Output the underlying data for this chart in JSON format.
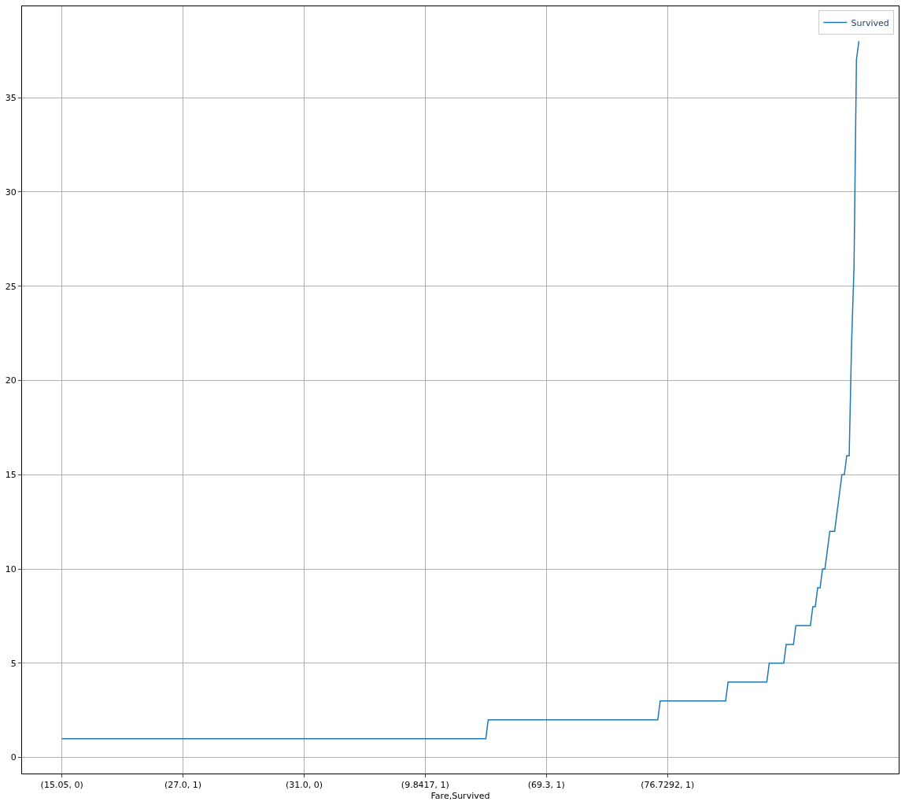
{
  "chart_data": {
    "type": "line",
    "xlabel": "Fare,Survived",
    "categories": [
      "(15.05, 0)",
      null,
      null,
      null,
      null,
      null,
      null,
      null,
      null,
      null,
      null,
      null,
      null,
      null,
      null,
      null,
      null,
      null,
      null,
      null,
      null,
      null,
      null,
      null,
      null,
      null,
      null,
      null,
      null,
      null,
      null,
      null,
      null,
      null,
      null,
      null,
      null,
      null,
      null,
      null,
      null,
      null,
      null,
      null,
      null,
      null,
      null,
      null,
      null,
      null,
      "(27.0, 1)",
      null,
      null,
      null,
      null,
      null,
      null,
      null,
      null,
      null,
      null,
      null,
      null,
      null,
      null,
      null,
      null,
      null,
      null,
      null,
      null,
      null,
      null,
      null,
      null,
      null,
      null,
      null,
      null,
      null,
      null,
      null,
      null,
      null,
      null,
      null,
      null,
      null,
      null,
      null,
      null,
      null,
      null,
      null,
      null,
      null,
      null,
      null,
      null,
      null,
      "(31.0, 0)",
      null,
      null,
      null,
      null,
      null,
      null,
      null,
      null,
      null,
      null,
      null,
      null,
      null,
      null,
      null,
      null,
      null,
      null,
      null,
      null,
      null,
      null,
      null,
      null,
      null,
      null,
      null,
      null,
      null,
      null,
      null,
      null,
      null,
      null,
      null,
      null,
      null,
      null,
      null,
      null,
      null,
      null,
      null,
      null,
      null,
      null,
      null,
      null,
      null,
      "(9.8417, 1)",
      null,
      null,
      null,
      null,
      null,
      null,
      null,
      null,
      null,
      null,
      null,
      null,
      null,
      null,
      null,
      null,
      null,
      null,
      null,
      null,
      null,
      null,
      null,
      null,
      null,
      null,
      null,
      null,
      null,
      null,
      null,
      null,
      null,
      null,
      null,
      null,
      null,
      null,
      null,
      null,
      null,
      null,
      null,
      null,
      null,
      null,
      null,
      null,
      null,
      "(69.3, 1)",
      null,
      null,
      null,
      null,
      null,
      null,
      null,
      null,
      null,
      null,
      null,
      null,
      null,
      null,
      null,
      null,
      null,
      null,
      null,
      null,
      null,
      null,
      null,
      null,
      null,
      null,
      null,
      null,
      null,
      null,
      null,
      null,
      null,
      null,
      null,
      null,
      null,
      null,
      null,
      null,
      null,
      null,
      null,
      null,
      null,
      null,
      null,
      null,
      null,
      "(76.7292, 1)",
      null,
      null,
      null,
      null,
      null,
      null,
      null,
      null,
      null,
      null,
      null,
      null,
      null,
      null,
      null,
      null,
      null,
      null,
      null,
      null,
      null,
      null,
      null,
      null,
      null,
      null,
      null,
      null,
      null,
      null,
      null,
      null,
      null,
      null,
      null,
      null,
      null,
      null,
      null,
      null,
      null,
      null,
      null,
      null,
      null,
      null,
      null,
      null,
      null,
      null,
      null,
      null,
      null,
      null,
      null,
      null,
      null,
      null,
      null,
      null,
      null,
      null,
      null,
      null,
      null,
      null,
      null,
      null,
      null,
      null,
      null,
      null,
      null,
      null,
      null,
      null,
      null,
      null,
      null
    ],
    "series": [
      {
        "name": "Survived",
        "color": "#1f77b4",
        "values": [
          1,
          1,
          1,
          1,
          1,
          1,
          1,
          1,
          1,
          1,
          1,
          1,
          1,
          1,
          1,
          1,
          1,
          1,
          1,
          1,
          1,
          1,
          1,
          1,
          1,
          1,
          1,
          1,
          1,
          1,
          1,
          1,
          1,
          1,
          1,
          1,
          1,
          1,
          1,
          1,
          1,
          1,
          1,
          1,
          1,
          1,
          1,
          1,
          1,
          1,
          1,
          1,
          1,
          1,
          1,
          1,
          1,
          1,
          1,
          1,
          1,
          1,
          1,
          1,
          1,
          1,
          1,
          1,
          1,
          1,
          1,
          1,
          1,
          1,
          1,
          1,
          1,
          1,
          1,
          1,
          1,
          1,
          1,
          1,
          1,
          1,
          1,
          1,
          1,
          1,
          1,
          1,
          1,
          1,
          1,
          1,
          1,
          1,
          1,
          1,
          1,
          1,
          1,
          1,
          1,
          1,
          1,
          1,
          1,
          1,
          1,
          1,
          1,
          1,
          1,
          1,
          1,
          1,
          1,
          1,
          1,
          1,
          1,
          1,
          1,
          1,
          1,
          1,
          1,
          1,
          1,
          1,
          1,
          1,
          1,
          1,
          1,
          1,
          1,
          1,
          1,
          1,
          1,
          1,
          1,
          1,
          1,
          1,
          1,
          1,
          1,
          1,
          1,
          1,
          1,
          1,
          1,
          1,
          1,
          1,
          1,
          1,
          1,
          1,
          1,
          1,
          1,
          1,
          1,
          1,
          1,
          1,
          1,
          1,
          1,
          1,
          2,
          2,
          2,
          2,
          2,
          2,
          2,
          2,
          2,
          2,
          2,
          2,
          2,
          2,
          2,
          2,
          2,
          2,
          2,
          2,
          2,
          2,
          2,
          2,
          2,
          2,
          2,
          2,
          2,
          2,
          2,
          2,
          2,
          2,
          2,
          2,
          2,
          2,
          2,
          2,
          2,
          2,
          2,
          2,
          2,
          2,
          2,
          2,
          2,
          2,
          2,
          2,
          2,
          2,
          2,
          2,
          2,
          2,
          2,
          2,
          2,
          2,
          2,
          2,
          2,
          2,
          2,
          2,
          2,
          2,
          2,
          3,
          3,
          3,
          3,
          3,
          3,
          3,
          3,
          3,
          3,
          3,
          3,
          3,
          3,
          3,
          3,
          3,
          3,
          3,
          3,
          3,
          3,
          3,
          3,
          3,
          3,
          3,
          3,
          4,
          4,
          4,
          4,
          4,
          4,
          4,
          4,
          4,
          4,
          4,
          4,
          4,
          4,
          4,
          4,
          4,
          5,
          5,
          5,
          5,
          5,
          5,
          5,
          6,
          6,
          6,
          6,
          7,
          7,
          7,
          7,
          7,
          7,
          7,
          8,
          8,
          9,
          9,
          10,
          10,
          11,
          12,
          12,
          12,
          13,
          14,
          15,
          15,
          16,
          16,
          22,
          26,
          37,
          38
        ]
      }
    ],
    "ylim": [
      -0.85,
      39.85
    ],
    "yticks": [
      0,
      5,
      10,
      15,
      20,
      25,
      30,
      35
    ],
    "grid": true,
    "legend": "top right",
    "marker": "none",
    "line_style": "solid"
  }
}
